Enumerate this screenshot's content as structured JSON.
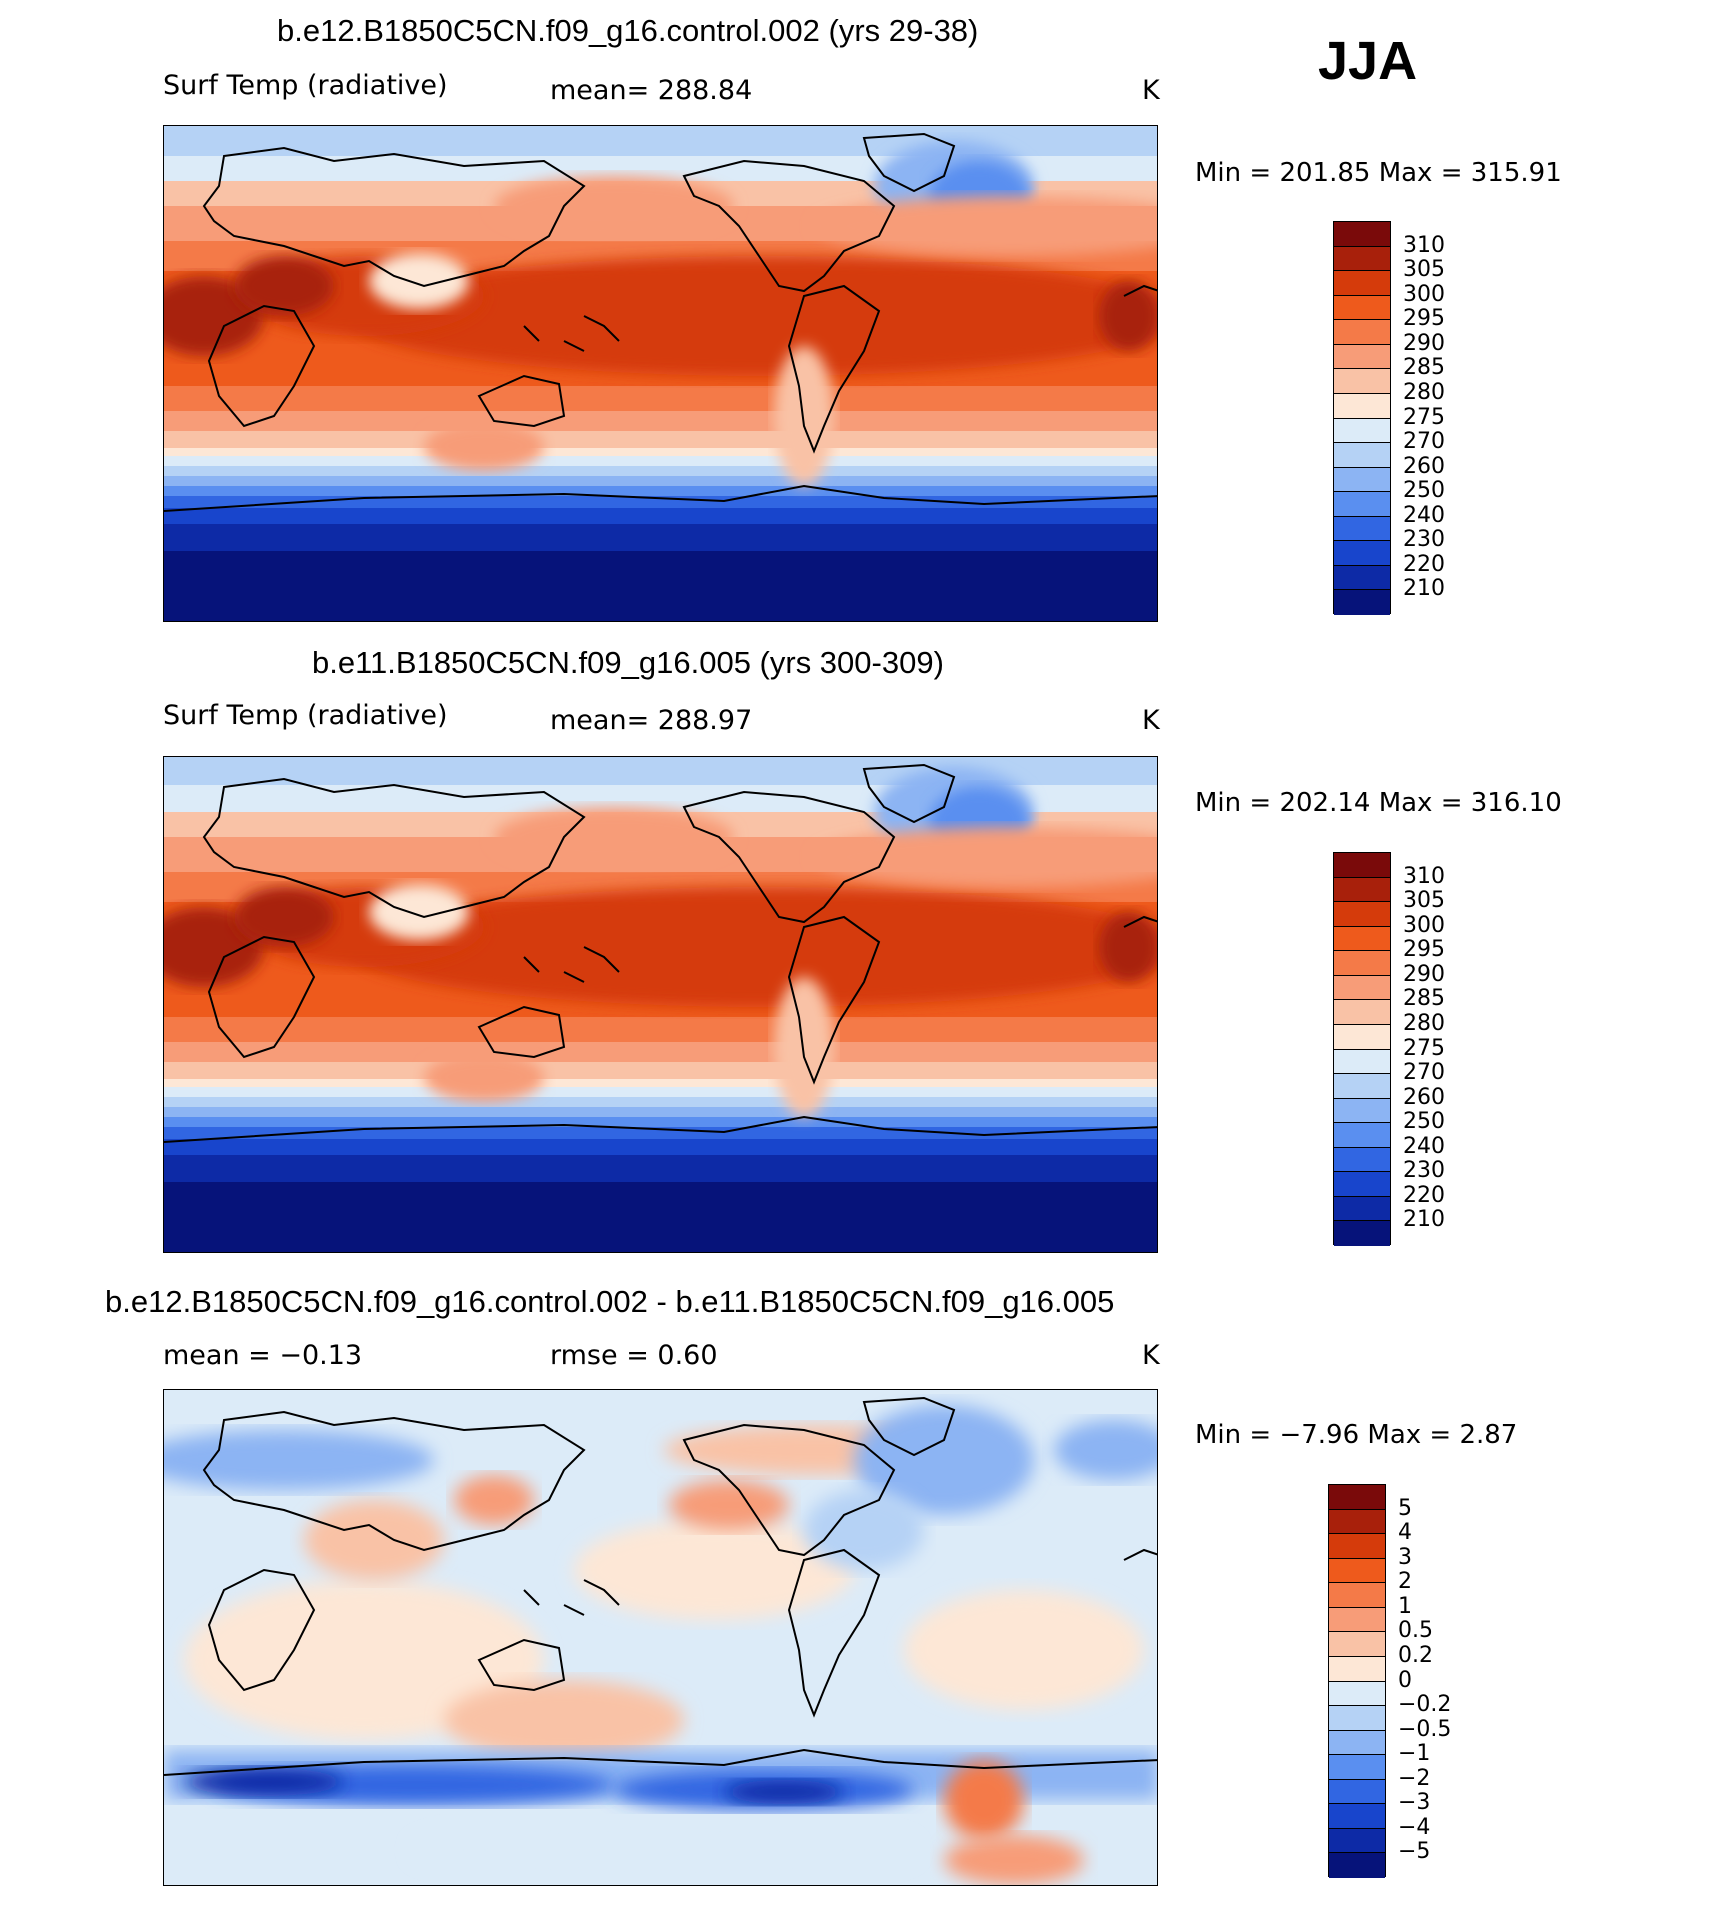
{
  "season": "JJA",
  "panels": [
    {
      "title": "b.e12.B1850C5CN.f09_g16.control.002 (yrs 29-38)",
      "variable": "Surf Temp (radiative)",
      "stat": "mean= 288.84",
      "units": "K",
      "minmax": "Min = 201.85 Max = 315.91"
    },
    {
      "title": "b.e11.B1850C5CN.f09_g16.005 (yrs 300-309)",
      "variable": "Surf Temp (radiative)",
      "stat": "mean= 288.97",
      "units": "K",
      "minmax": "Min = 202.14 Max = 316.10"
    },
    {
      "title": "b.e12.B1850C5CN.f09_g16.control.002 - b.e11.B1850C5CN.f09_g16.005",
      "stat_left": "mean = −0.13",
      "stat_right": "rmse = 0.60",
      "units": "K",
      "minmax": "Min = −7.96 Max = 2.87"
    }
  ],
  "colorbars": {
    "temperature": {
      "labels": [
        "310",
        "305",
        "300",
        "295",
        "290",
        "285",
        "280",
        "275",
        "270",
        "260",
        "250",
        "240",
        "230",
        "220",
        "210"
      ],
      "colors": [
        "#7a0a0a",
        "#a8200b",
        "#d53b0b",
        "#ee5a1c",
        "#f47a48",
        "#f79c78",
        "#f9c2a6",
        "#fde7d6",
        "#dcebf8",
        "#b5d2f5",
        "#8cb4f3",
        "#5a8ff0",
        "#3166e2",
        "#1845cc",
        "#0d2aa6",
        "#06137a"
      ]
    },
    "difference": {
      "labels": [
        "5",
        "4",
        "3",
        "2",
        "1",
        "0.5",
        "0.2",
        "0",
        "−0.2",
        "−0.5",
        "−1",
        "−2",
        "−3",
        "−4",
        "−5"
      ],
      "colors": [
        "#7a0a0a",
        "#a8200b",
        "#d53b0b",
        "#ee5a1c",
        "#f47a48",
        "#f79c78",
        "#f9c2a6",
        "#fde7d6",
        "#dcebf8",
        "#b5d2f5",
        "#8cb4f3",
        "#5a8ff0",
        "#3166e2",
        "#1845cc",
        "#0d2aa6",
        "#06137a"
      ]
    }
  }
}
